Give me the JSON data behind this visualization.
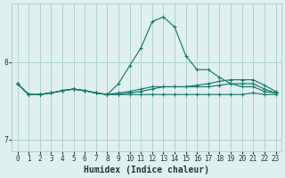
{
  "title": "",
  "xlabel": "Humidex (Indice chaleur)",
  "xlim": [
    -0.5,
    23.5
  ],
  "ylim": [
    6.85,
    8.75
  ],
  "yticks": [
    7,
    8
  ],
  "xticks": [
    0,
    1,
    2,
    3,
    4,
    5,
    6,
    7,
    8,
    9,
    10,
    11,
    12,
    13,
    14,
    15,
    16,
    17,
    18,
    19,
    20,
    21,
    22,
    23
  ],
  "bg_color": "#dff0ee",
  "grid_color": "#aed4cc",
  "line_color": "#1a7a6a",
  "lines": [
    {
      "x": [
        0,
        1,
        2,
        3,
        4,
        5,
        6,
        7,
        8,
        9,
        10,
        11,
        12,
        13,
        14,
        15,
        16,
        17,
        18,
        19,
        20,
        21,
        22,
        23
      ],
      "y": [
        7.72,
        7.58,
        7.58,
        7.6,
        7.63,
        7.65,
        7.63,
        7.6,
        7.58,
        7.72,
        7.95,
        8.18,
        8.52,
        8.58,
        8.45,
        8.08,
        7.9,
        7.9,
        7.8,
        7.72,
        7.68,
        7.68,
        7.62,
        7.6
      ]
    },
    {
      "x": [
        0,
        1,
        2,
        3,
        4,
        5,
        6,
        7,
        8,
        9,
        10,
        11,
        12,
        13,
        14,
        15,
        16,
        17,
        18,
        19,
        20,
        21,
        22,
        23
      ],
      "y": [
        7.72,
        7.58,
        7.58,
        7.6,
        7.63,
        7.65,
        7.63,
        7.6,
        7.58,
        7.6,
        7.62,
        7.65,
        7.68,
        7.68,
        7.68,
        7.68,
        7.7,
        7.72,
        7.75,
        7.77,
        7.77,
        7.77,
        7.7,
        7.62
      ]
    },
    {
      "x": [
        0,
        1,
        2,
        3,
        4,
        5,
        6,
        7,
        8,
        9,
        10,
        11,
        12,
        13,
        14,
        15,
        16,
        17,
        18,
        19,
        20,
        21,
        22,
        23
      ],
      "y": [
        7.72,
        7.58,
        7.58,
        7.6,
        7.63,
        7.65,
        7.63,
        7.6,
        7.58,
        7.58,
        7.58,
        7.58,
        7.58,
        7.58,
        7.58,
        7.58,
        7.58,
        7.58,
        7.58,
        7.58,
        7.58,
        7.6,
        7.58,
        7.58
      ]
    },
    {
      "x": [
        0,
        1,
        2,
        3,
        4,
        5,
        6,
        7,
        8,
        9,
        10,
        11,
        12,
        13,
        14,
        15,
        16,
        17,
        18,
        19,
        20,
        21,
        22,
        23
      ],
      "y": [
        7.72,
        7.58,
        7.58,
        7.6,
        7.63,
        7.65,
        7.63,
        7.6,
        7.58,
        7.58,
        7.6,
        7.62,
        7.65,
        7.68,
        7.68,
        7.68,
        7.68,
        7.68,
        7.7,
        7.72,
        7.72,
        7.72,
        7.65,
        7.6
      ]
    }
  ],
  "axis_fontsize": 6.5,
  "tick_fontsize": 5.5,
  "xlabel_fontsize": 7,
  "xlabel_fontweight": "bold"
}
